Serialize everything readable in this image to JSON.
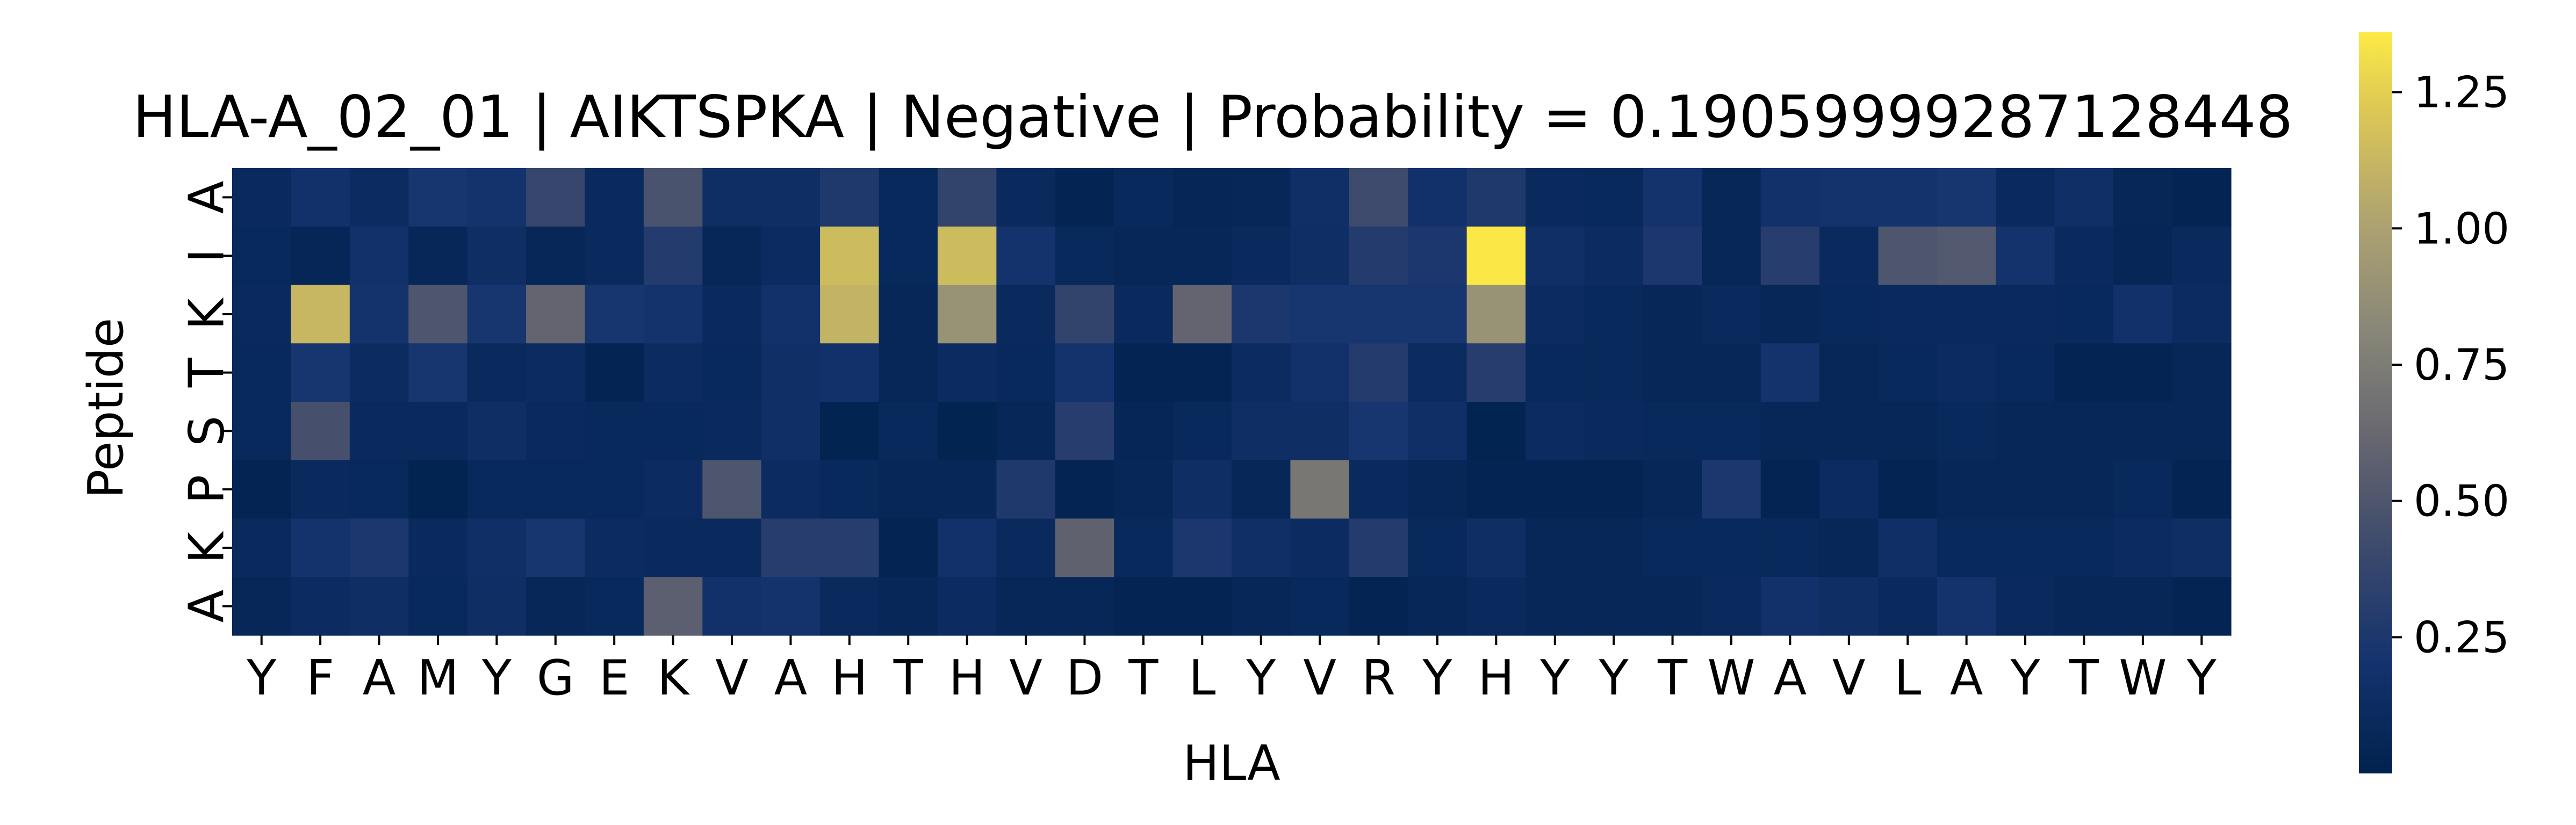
{
  "chart_data": {
    "type": "heatmap",
    "title": "HLA-A_02_01 | AIKTSPKA | Negative | Probability = 0.19059999287128448",
    "xlabel": "HLA",
    "ylabel": "Peptide",
    "x_labels": [
      "Y",
      "F",
      "A",
      "M",
      "Y",
      "G",
      "E",
      "K",
      "V",
      "A",
      "H",
      "T",
      "H",
      "V",
      "D",
      "T",
      "L",
      "Y",
      "V",
      "R",
      "Y",
      "H",
      "Y",
      "Y",
      "T",
      "W",
      "A",
      "V",
      "L",
      "A",
      "Y",
      "T",
      "W",
      "Y"
    ],
    "y_labels": [
      "A",
      "I",
      "K",
      "T",
      "S",
      "P",
      "K",
      "A"
    ],
    "values": [
      [
        0.1,
        0.18,
        0.12,
        0.22,
        0.2,
        0.38,
        0.1,
        0.48,
        0.14,
        0.14,
        0.26,
        0.08,
        0.36,
        0.1,
        0.04,
        0.08,
        0.05,
        0.06,
        0.16,
        0.42,
        0.18,
        0.26,
        0.1,
        0.08,
        0.2,
        0.06,
        0.18,
        0.2,
        0.2,
        0.22,
        0.1,
        0.16,
        0.06,
        0.04
      ],
      [
        0.08,
        0.05,
        0.18,
        0.06,
        0.14,
        0.06,
        0.1,
        0.28,
        0.06,
        0.12,
        1.15,
        0.08,
        1.15,
        0.2,
        0.08,
        0.06,
        0.06,
        0.1,
        0.14,
        0.28,
        0.24,
        1.35,
        0.16,
        0.12,
        0.24,
        0.06,
        0.3,
        0.1,
        0.5,
        0.52,
        0.2,
        0.1,
        0.05,
        0.1
      ],
      [
        0.1,
        1.12,
        0.2,
        0.5,
        0.22,
        0.6,
        0.22,
        0.2,
        0.1,
        0.18,
        1.1,
        0.06,
        0.9,
        0.1,
        0.36,
        0.1,
        0.6,
        0.24,
        0.22,
        0.22,
        0.22,
        0.9,
        0.12,
        0.08,
        0.06,
        0.1,
        0.06,
        0.08,
        0.1,
        0.1,
        0.1,
        0.08,
        0.18,
        0.12
      ],
      [
        0.08,
        0.22,
        0.12,
        0.22,
        0.1,
        0.12,
        0.04,
        0.12,
        0.08,
        0.16,
        0.18,
        0.06,
        0.12,
        0.08,
        0.2,
        0.04,
        0.04,
        0.12,
        0.18,
        0.28,
        0.12,
        0.3,
        0.08,
        0.08,
        0.06,
        0.06,
        0.2,
        0.06,
        0.08,
        0.12,
        0.08,
        0.04,
        0.04,
        0.06
      ],
      [
        0.08,
        0.46,
        0.1,
        0.1,
        0.14,
        0.1,
        0.08,
        0.08,
        0.1,
        0.16,
        0.02,
        0.08,
        0.02,
        0.06,
        0.3,
        0.05,
        0.08,
        0.14,
        0.14,
        0.22,
        0.16,
        0.02,
        0.12,
        0.1,
        0.08,
        0.08,
        0.06,
        0.06,
        0.06,
        0.08,
        0.06,
        0.06,
        0.06,
        0.06
      ],
      [
        0.04,
        0.1,
        0.08,
        0.02,
        0.08,
        0.08,
        0.08,
        0.12,
        0.5,
        0.12,
        0.08,
        0.06,
        0.06,
        0.26,
        0.04,
        0.06,
        0.14,
        0.06,
        0.72,
        0.1,
        0.06,
        0.04,
        0.04,
        0.04,
        0.06,
        0.24,
        0.04,
        0.12,
        0.04,
        0.06,
        0.06,
        0.06,
        0.08,
        0.04
      ],
      [
        0.1,
        0.2,
        0.24,
        0.1,
        0.16,
        0.22,
        0.12,
        0.1,
        0.1,
        0.3,
        0.3,
        0.04,
        0.18,
        0.1,
        0.58,
        0.08,
        0.24,
        0.16,
        0.12,
        0.28,
        0.08,
        0.14,
        0.06,
        0.06,
        0.08,
        0.08,
        0.08,
        0.06,
        0.16,
        0.08,
        0.08,
        0.08,
        0.12,
        0.14
      ],
      [
        0.06,
        0.12,
        0.14,
        0.08,
        0.14,
        0.06,
        0.08,
        0.56,
        0.18,
        0.2,
        0.1,
        0.06,
        0.12,
        0.06,
        0.06,
        0.04,
        0.04,
        0.06,
        0.08,
        0.04,
        0.06,
        0.1,
        0.06,
        0.06,
        0.06,
        0.1,
        0.18,
        0.14,
        0.1,
        0.2,
        0.1,
        0.06,
        0.06,
        0.04
      ]
    ],
    "vmin": 0.0,
    "vmax": 1.36,
    "colormap": "cividis",
    "colorbar": {
      "ticks": [
        0.25,
        0.5,
        0.75,
        1.0,
        1.25
      ],
      "tick_labels": [
        "0.25",
        "0.50",
        "0.75",
        "1.00",
        "1.25"
      ]
    }
  }
}
